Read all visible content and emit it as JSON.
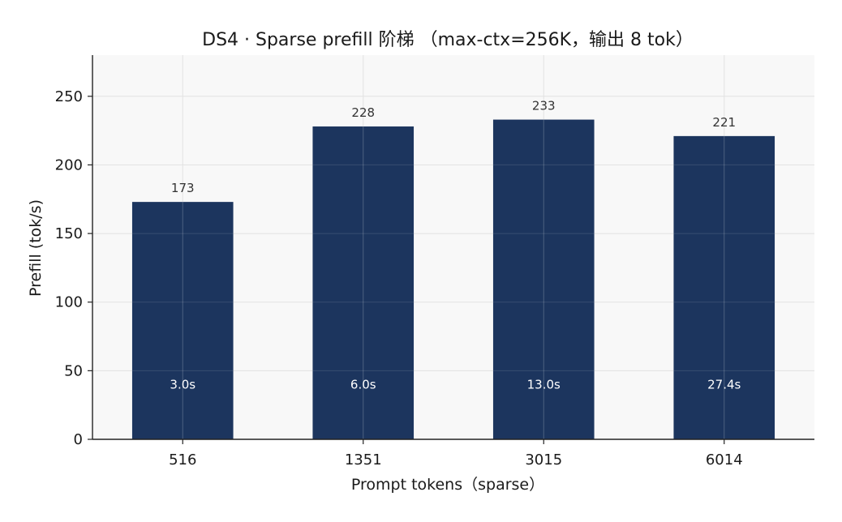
{
  "chart_data": {
    "type": "bar",
    "title": "DS4 · Sparse prefill 阶梯 （max-ctx=256K，输出 8 tok）",
    "xlabel": "Prompt tokens（sparse）",
    "ylabel": "Prefill (tok/s)",
    "categories": [
      "516",
      "1351",
      "3015",
      "6014"
    ],
    "values": [
      173,
      228,
      233,
      221
    ],
    "value_labels": [
      "173",
      "228",
      "233",
      "221"
    ],
    "time_labels": [
      "3.0s",
      "6.0s",
      "13.0s",
      "27.4s"
    ],
    "yticks": [
      0,
      50,
      100,
      150,
      200,
      250
    ],
    "ylim": [
      0,
      280
    ],
    "grid": true,
    "colors": {
      "bar": "#1c355e",
      "plot_bg": "#f8f8f8",
      "grid": "#e2e2e2",
      "axis": "#222222"
    }
  }
}
